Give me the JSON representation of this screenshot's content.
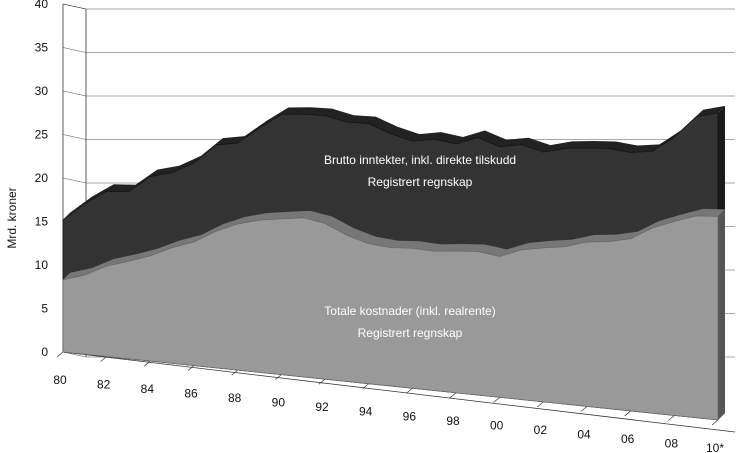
{
  "chart_data": {
    "type": "area",
    "title": "",
    "ylabel": "Mrd. kroner",
    "xlabel": "",
    "ylim": [
      0,
      40
    ],
    "y_ticks": [
      0,
      5,
      10,
      15,
      20,
      25,
      30,
      35,
      40
    ],
    "x": [
      "1980",
      "1981",
      "1982",
      "1983",
      "1984",
      "1985",
      "1986",
      "1987",
      "1988",
      "1989",
      "1990",
      "1991",
      "1992",
      "1993",
      "1994",
      "1995",
      "1996",
      "1997",
      "1998",
      "1999",
      "2000",
      "2001",
      "2002",
      "2003",
      "2004",
      "2005",
      "2006",
      "2007",
      "2008",
      "2009",
      "2010"
    ],
    "x_tick_labels": [
      {
        "year": "1980",
        "label": "80"
      },
      {
        "year": "1982",
        "label": "82"
      },
      {
        "year": "1984",
        "label": "84"
      },
      {
        "year": "1986",
        "label": "86"
      },
      {
        "year": "1988",
        "label": "88"
      },
      {
        "year": "1990",
        "label": "90"
      },
      {
        "year": "1992",
        "label": "92"
      },
      {
        "year": "1994",
        "label": "94"
      },
      {
        "year": "1996",
        "label": "96"
      },
      {
        "year": "1998",
        "label": "98"
      },
      {
        "year": "2000",
        "label": "00"
      },
      {
        "year": "2002",
        "label": "02"
      },
      {
        "year": "2004",
        "label": "04"
      },
      {
        "year": "2006",
        "label": "06"
      },
      {
        "year": "2008",
        "label": "08"
      },
      {
        "year": "2010",
        "label": "10*"
      }
    ],
    "series": [
      {
        "values": [
          15.2,
          17.3,
          19.0,
          19.2,
          21.2,
          21.9,
          23.3,
          25.6,
          26.1,
          28.1,
          29.9,
          30.2,
          30.3,
          29.8,
          29.9,
          29.0,
          28.4,
          28.9,
          28.6,
          29.6,
          28.8,
          29.3,
          28.7,
          29.4,
          29.7,
          29.9,
          29.7,
          30.1,
          32.0,
          34.6,
          35.3
        ],
        "color": "#333333",
        "annotation": [
          "Brutto inntekter, inkl. direkte tilskudd",
          "Registrert regnskap"
        ]
      },
      {
        "values": [
          8.3,
          9.1,
          10.4,
          11.2,
          12.1,
          13.3,
          14.2,
          15.7,
          16.8,
          17.5,
          17.9,
          18.3,
          17.9,
          16.8,
          16.1,
          15.9,
          16.1,
          16.0,
          16.3,
          16.5,
          16.2,
          17.2,
          17.7,
          18.1,
          18.9,
          19.2,
          19.8,
          21.3,
          22.3,
          23.2,
          23.4
        ],
        "color": "#999999",
        "annotation": [
          "Totale kostnader (inkl. realrente)",
          "Registrert regnskap"
        ]
      }
    ],
    "grid": true,
    "legend": "none"
  }
}
